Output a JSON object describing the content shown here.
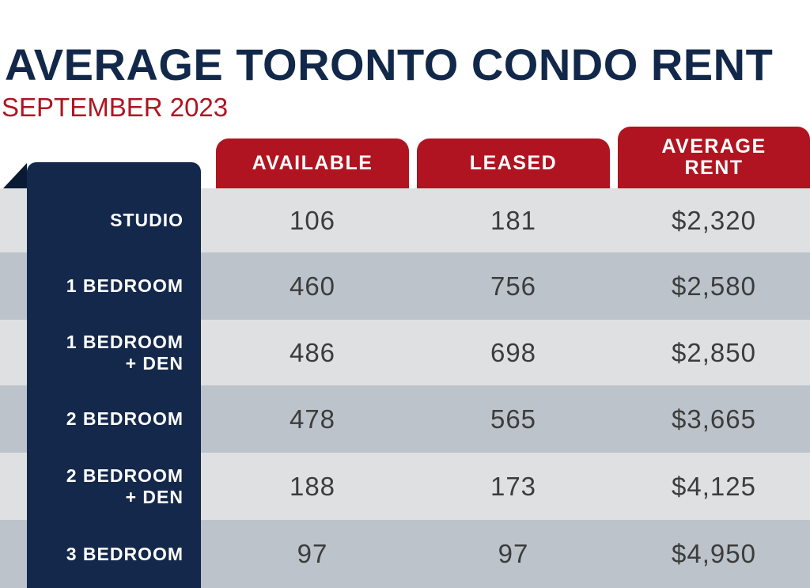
{
  "chart_data": {
    "type": "table",
    "title": "AVERAGE TORONTO CONDO RENT",
    "subtitle": "SEPTEMBER 2023",
    "columns": [
      "AVAILABLE",
      "LEASED",
      "AVERAGE RENT"
    ],
    "rows": [
      {
        "label_line1": "STUDIO",
        "label_line2": "",
        "available": "106",
        "leased": "181",
        "average_rent": "$2,320"
      },
      {
        "label_line1": "1 BEDROOM",
        "label_line2": "",
        "available": "460",
        "leased": "756",
        "average_rent": "$2,580"
      },
      {
        "label_line1": "1 BEDROOM",
        "label_line2": "+ DEN",
        "available": "486",
        "leased": "698",
        "average_rent": "$2,850"
      },
      {
        "label_line1": "2 BEDROOM",
        "label_line2": "",
        "available": "478",
        "leased": "565",
        "average_rent": "$3,665"
      },
      {
        "label_line1": "2 BEDROOM",
        "label_line2": "+ DEN",
        "available": "188",
        "leased": "173",
        "average_rent": "$4,125"
      },
      {
        "label_line1": "3 BEDROOM",
        "label_line2": "",
        "available": "97",
        "leased": "97",
        "average_rent": "$4,950"
      }
    ]
  },
  "colors": {
    "navy": "#13284b",
    "red": "#b01420",
    "row_light": "#dfe0e2",
    "row_dark": "#bcc3cb",
    "value_text": "#3c3c3c"
  }
}
